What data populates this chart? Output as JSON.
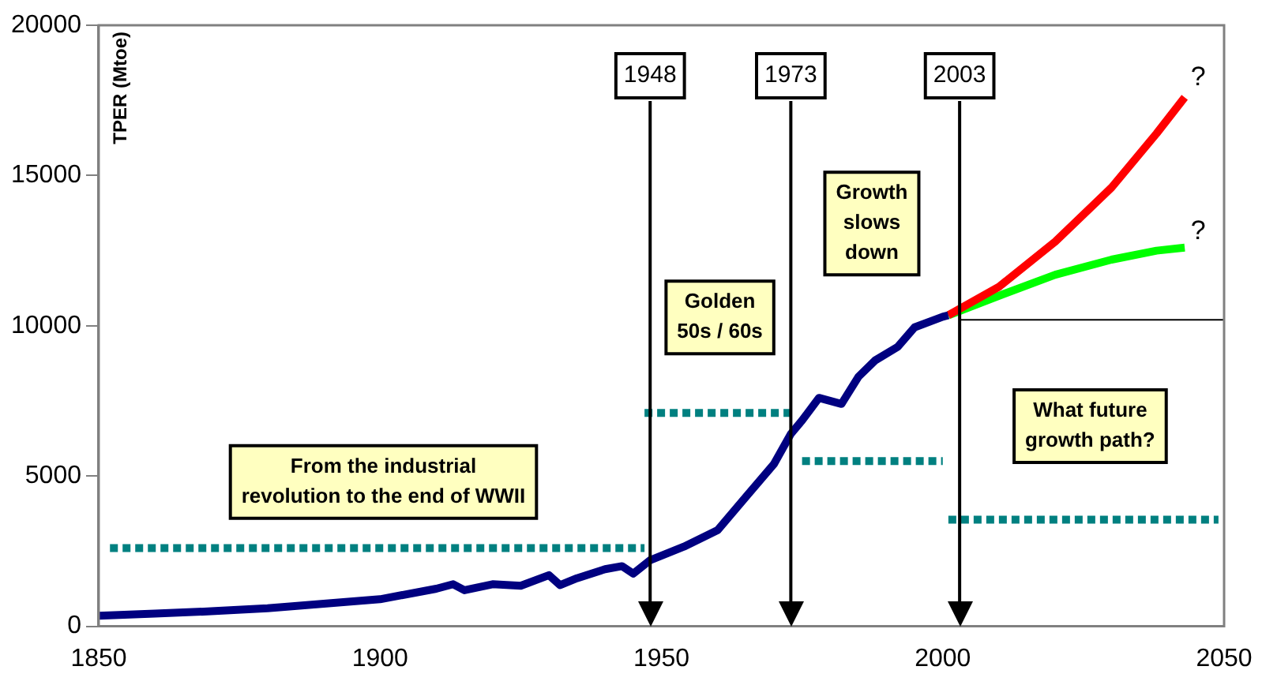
{
  "chart_data": {
    "type": "line",
    "ylabel": "TPER (Mtoe)",
    "xlim": [
      1850,
      2050
    ],
    "xticks": [
      1850,
      1900,
      1950,
      2000,
      2050
    ],
    "ylim": [
      0,
      20000
    ],
    "yticks": [
      0,
      5000,
      10000,
      15000,
      20000
    ],
    "grid": false,
    "legend": false,
    "marker": "none",
    "series": [
      {
        "color": "#000080",
        "x": [
          1850,
          1860,
          1870,
          1880,
          1890,
          1900,
          1910,
          1913,
          1915,
          1920,
          1925,
          1930,
          1932,
          1935,
          1940,
          1943,
          1945,
          1948,
          1954,
          1960,
          1965,
          1970,
          1973,
          1975,
          1978,
          1982,
          1985,
          1988,
          1992,
          1995,
          2000,
          2001
        ],
        "values": [
          350,
          420,
          500,
          600,
          750,
          900,
          1250,
          1400,
          1200,
          1400,
          1350,
          1700,
          1370,
          1600,
          1900,
          2000,
          1750,
          2200,
          2650,
          3200,
          4300,
          5400,
          6400,
          6850,
          7600,
          7400,
          8300,
          8850,
          9300,
          9950,
          10300,
          10350
        ]
      },
      {
        "color": "#ff0000",
        "x": [
          2001,
          2010,
          2020,
          2030,
          2038,
          2043
        ],
        "values": [
          10350,
          11300,
          12800,
          14600,
          16400,
          17600
        ]
      },
      {
        "color": "#00ff00",
        "x": [
          2001,
          2010,
          2020,
          2030,
          2038,
          2043
        ],
        "values": [
          10350,
          11000,
          11700,
          12200,
          12500,
          12600
        ]
      },
      {
        "color": "#000000",
        "line_style": "solid",
        "x": [
          2003,
          2050
        ],
        "values": [
          10200,
          10200
        ]
      },
      {
        "color": "#008080",
        "line_style": "dotted",
        "x": [
          1852,
          1947
        ],
        "values": [
          2600,
          2600
        ]
      },
      {
        "color": "#008080",
        "line_style": "dotted",
        "x": [
          1947,
          1973
        ],
        "values": [
          7100,
          7100
        ]
      },
      {
        "color": "#008080",
        "line_style": "dotted",
        "x": [
          1975,
          2000
        ],
        "values": [
          5500,
          5500
        ]
      },
      {
        "color": "#008080",
        "line_style": "dotted",
        "x": [
          2001,
          2049
        ],
        "values": [
          3550,
          3550
        ]
      }
    ],
    "ref_lines": [
      {
        "axis": "x",
        "value": 1948,
        "label": "1948"
      },
      {
        "axis": "x",
        "value": 1973,
        "label": "1973"
      },
      {
        "axis": "x",
        "value": 2003,
        "label": "2003"
      }
    ],
    "annotations": [
      "From the industrial\nrevolution to the end of WWII",
      "Golden\n50s / 60s",
      "Growth\nslows\ndown",
      "What future\ngrowth path?",
      "?",
      "?"
    ]
  }
}
